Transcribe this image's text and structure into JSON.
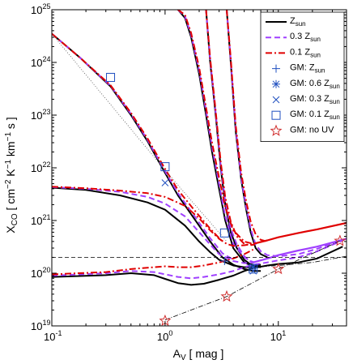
{
  "chart_data": {
    "type": "line",
    "xlabel_main": "A",
    "xlabel_sub": "V",
    "xlabel_unit": " [ mag ]",
    "ylabel_main": "X",
    "ylabel_sub": "CO",
    "ylabel_unit": " [ cm",
    "ylabel_unit_rest": "K",
    "ylabel_unit_rest2": "km",
    "ylabel_unit_rest3": " s ]",
    "xlim": [
      0.1,
      40
    ],
    "ylim": [
      1e+19,
      1e+25
    ],
    "xscale": "log",
    "yscale": "log",
    "grid": false,
    "legend_position": "top-right",
    "x_ticks": [
      {
        "value": 0.1,
        "base": "10",
        "exp": "-1"
      },
      {
        "value": 1,
        "base": "10",
        "exp": "0"
      },
      {
        "value": 10,
        "base": "10",
        "exp": "1"
      }
    ],
    "y_ticks": [
      {
        "value": 1e+19,
        "base": "10",
        "exp": "19"
      },
      {
        "value": 1e+20,
        "base": "10",
        "exp": "20"
      },
      {
        "value": 1e+21,
        "base": "10",
        "exp": "21"
      },
      {
        "value": 1e+22,
        "base": "10",
        "exp": "22"
      },
      {
        "value": 1e+23,
        "base": "10",
        "exp": "23"
      },
      {
        "value": 1e+24,
        "base": "10",
        "exp": "24"
      },
      {
        "value": 1e+25,
        "base": "10",
        "exp": "25"
      }
    ],
    "legend": [
      {
        "label": "Z",
        "sub": "sun",
        "prefix": "",
        "style": "solid-black"
      },
      {
        "label": "0.3 Z",
        "sub": "sun",
        "prefix": "",
        "style": "dashed-purple"
      },
      {
        "label": "0.1 Z",
        "sub": "sun",
        "prefix": "",
        "style": "dashdot-red"
      },
      {
        "label": "GM: Z",
        "sub": "sun",
        "prefix": "",
        "style": "plus-blue"
      },
      {
        "label": "GM: 0.6 Z",
        "sub": "sun",
        "prefix": "",
        "style": "asterisk-blue"
      },
      {
        "label": "GM: 0.3 Z",
        "sub": "sun",
        "prefix": "",
        "style": "cross-blue"
      },
      {
        "label": "GM: 0.1 Z",
        "sub": "sun",
        "prefix": "",
        "style": "square-blue"
      },
      {
        "label": "GM: no UV",
        "sub": "",
        "prefix": "",
        "style": "star-red"
      }
    ],
    "series": [
      {
        "style": "solid-black",
        "x": [
          0.1,
          0.18,
          0.33,
          0.5,
          0.7,
          1.0,
          1.3,
          1.8,
          2.5,
          3.2,
          4.0,
          5.0,
          6.0,
          7.0
        ],
        "y": [
          3.5e+24,
          1.2e+24,
          3.5e+23,
          1e+23,
          3.2e+22,
          8e+21,
          3e+21,
          1.1e+21,
          4e+20,
          2e+20,
          1.45e+20,
          1.2e+20,
          1.1e+20,
          1.1e+20
        ]
      },
      {
        "style": "solid-black",
        "x": [
          0.1,
          0.2,
          0.4,
          0.7,
          1.0,
          1.5,
          2.0,
          2.5,
          3.0,
          4.0,
          5.0,
          6.0,
          7.0
        ],
        "y": [
          4.2e+21,
          3.8e+21,
          3e+21,
          2.2e+21,
          1.6e+21,
          8e+20,
          4e+20,
          2.5e+20,
          1.8e+20,
          1.4e+20,
          1.3e+20,
          1.3e+20,
          1.35e+20
        ]
      },
      {
        "style": "solid-black",
        "x": [
          0.1,
          0.3,
          0.5,
          0.8,
          1.0,
          1.3,
          1.7,
          2.2,
          3.0,
          4.0,
          5.0,
          6.0,
          8.0,
          10.0,
          15.0,
          22.0,
          37.0
        ],
        "y": [
          8.5e+19,
          9.2e+19,
          1e+20,
          9.2e+19,
          7.8e+19,
          6.5e+19,
          6e+19,
          6.3e+19,
          7.5e+19,
          9e+19,
          1.1e+20,
          1.25e+20,
          1.4e+20,
          1.5e+20,
          1.6e+20,
          1.9e+20,
          3.2e+20
        ]
      },
      {
        "style": "solid-black",
        "x": [
          1.3,
          1.5,
          1.7,
          2.0,
          2.3,
          2.6,
          3.0,
          3.4,
          4.0,
          5.0,
          6.0,
          7.0
        ],
        "y": [
          1e+25,
          7e+24,
          3e+24,
          6e+23,
          1e+23,
          2e+22,
          4e+21,
          1e+21,
          3e+20,
          1.6e+20,
          1.35e+20,
          1.3e+20
        ]
      },
      {
        "style": "solid-black",
        "x": [
          2.3,
          2.5,
          2.8,
          3.1,
          3.4,
          3.8,
          4.3,
          5.0,
          5.6,
          6.2,
          7.0
        ],
        "y": [
          1e+25,
          1e+24,
          1e+23,
          1e+22,
          2e+21,
          6e+20,
          3e+20,
          1.8e+20,
          1.5e+20,
          1.4e+20,
          1.45e+20
        ]
      },
      {
        "style": "solid-black",
        "x": [
          3.5,
          3.8,
          4.2,
          4.7,
          5.2,
          5.7,
          6.3,
          7.0,
          8.0
        ],
        "y": [
          1e+25,
          1e+24,
          5e+22,
          6e+21,
          1.6e+21,
          6e+20,
          3e+20,
          2.3e+20,
          2e+20
        ]
      },
      {
        "style": "dashed-purple",
        "x": [
          0.1,
          0.2,
          0.4,
          0.7,
          1.0,
          1.5,
          2.0,
          2.5,
          3.0,
          4.0,
          5.0,
          6.0
        ],
        "y": [
          4.3e+21,
          4e+21,
          3.5e+21,
          2.8e+21,
          2.1e+21,
          1.2e+21,
          6e+20,
          3.5e+20,
          2.3e+20,
          1.7e+20,
          1.55e+20,
          1.6e+20
        ]
      },
      {
        "style": "dashed-purple",
        "x": [
          0.1,
          0.3,
          0.5,
          0.8,
          1.0,
          1.3,
          1.7,
          2.2,
          3.0,
          4.0,
          5.0,
          6.0,
          8.0,
          10.0,
          15.0,
          22.0,
          37.0
        ],
        "y": [
          9e+19,
          1e+20,
          1.1e+20,
          1.05e+20,
          9.5e+19,
          8.5e+19,
          8e+19,
          8.5e+19,
          9.5e+19,
          1.1e+20,
          1.3e+20,
          1.45e+20,
          1.6e+20,
          1.75e+20,
          2e+20,
          2.6e+20,
          4.2e+20
        ]
      },
      {
        "style": "dashed-purple",
        "x": [
          1.3,
          1.5,
          1.7,
          2.0,
          2.3,
          2.6,
          3.0,
          3.4,
          4.0,
          5.0,
          6.0
        ],
        "y": [
          1e+25,
          7.5e+24,
          3.3e+24,
          7e+23,
          1.2e+23,
          2.5e+22,
          5e+21,
          1.2e+21,
          3.6e+20,
          2e+20,
          1.6e+20
        ]
      },
      {
        "style": "dashed-purple",
        "x": [
          2.3,
          2.5,
          2.8,
          3.1,
          3.4,
          3.8,
          4.3,
          5.0,
          5.6,
          6.2
        ],
        "y": [
          1e+25,
          1.1e+24,
          1.1e+23,
          1.1e+22,
          2.3e+21,
          7e+20,
          3.5e+20,
          2.1e+20,
          1.7e+20,
          1.6e+20
        ]
      },
      {
        "style": "dashed-purple",
        "x": [
          3.5,
          3.8,
          4.2,
          4.7,
          5.2,
          5.7,
          6.3,
          7.0,
          8.0,
          10.0,
          15.0,
          22.0,
          37.0
        ],
        "y": [
          1e+25,
          1.1e+24,
          5.5e+22,
          6.5e+21,
          1.8e+21,
          7e+20,
          3.5e+20,
          2.6e+20,
          2.2e+20,
          2.1e+20,
          2.3e+20,
          2.9e+20,
          4.3e+20
        ]
      },
      {
        "style": "dashed-purple",
        "x": [
          0.1,
          0.18,
          0.33,
          0.5,
          0.7,
          1.0,
          1.3,
          1.8,
          2.5,
          3.2,
          4.0
        ],
        "y": [
          3.5e+24,
          1.2e+24,
          3.6e+23,
          1.05e+23,
          3.4e+22,
          8.6e+21,
          3.3e+21,
          1.25e+21,
          4.6e+20,
          2.4e+20,
          1.8e+20
        ]
      },
      {
        "style": "dashdot-red",
        "x": [
          0.1,
          0.2,
          0.4,
          0.7,
          1.0,
          1.5,
          2.0,
          2.5,
          3.0,
          3.5,
          4.0,
          5.0,
          6.0
        ],
        "y": [
          4.4e+21,
          4.1e+21,
          3.7e+21,
          3.3e+21,
          2.8e+21,
          1.9e+21,
          1.1e+21,
          6.5e+20,
          4.5e+20,
          3.6e+20,
          3.3e+20,
          3.4e+20,
          3.6e+20
        ]
      },
      {
        "style": "dashdot-red",
        "x": [
          0.1,
          0.3,
          0.5,
          0.8,
          1.0,
          1.3,
          1.7,
          2.2,
          3.0,
          4.0,
          5.0,
          6.0
        ],
        "y": [
          9.5e+19,
          1.05e+20,
          1.2e+20,
          1.3e+20,
          1.35e+20,
          1.3e+20,
          1.3e+20,
          1.4e+20,
          1.6e+20,
          1.9e+20,
          2.3e+20,
          2.8e+20
        ]
      },
      {
        "style": "dashdot-red",
        "x": [
          1.3,
          1.5,
          1.7,
          2.0,
          2.3,
          2.6,
          3.0,
          3.4,
          4.0,
          5.0,
          6.0
        ],
        "y": [
          1e+25,
          8e+24,
          3.6e+24,
          8e+23,
          1.4e+23,
          3e+22,
          6.5e+21,
          1.8e+21,
          6.5e+20,
          4e+20,
          3.6e+20
        ]
      },
      {
        "style": "dashdot-red",
        "x": [
          2.3,
          2.5,
          2.8,
          3.1,
          3.4,
          3.8,
          4.3,
          5.0,
          5.6,
          6.2
        ],
        "y": [
          1e+25,
          1.2e+24,
          1.2e+23,
          1.3e+22,
          2.8e+21,
          9.5e+20,
          5e+20,
          3.6e+20,
          3.4e+20,
          3.5e+20
        ]
      },
      {
        "style": "dashdot-red",
        "x": [
          3.5,
          3.8,
          4.2,
          4.7,
          5.2,
          5.7,
          6.3,
          7.0,
          8.0
        ],
        "y": [
          1e+25,
          1.2e+24,
          6.5e+22,
          8e+21,
          2.3e+21,
          9.5e+20,
          5.5e+20,
          4.3e+20,
          4e+20
        ]
      },
      {
        "style": "dashdot-red",
        "x": [
          0.1,
          0.18,
          0.33,
          0.5,
          0.7,
          1.0,
          1.3,
          1.8,
          2.5,
          3.2
        ],
        "y": [
          3.5e+24,
          1.2e+24,
          3.7e+23,
          1.1e+23,
          3.6e+22,
          9.5e+21,
          3.8e+21,
          1.6e+21,
          7e+20,
          4e+20
        ]
      },
      {
        "style": "solid-red-thick",
        "x": [
          6.0,
          8.0,
          10.0,
          15.0,
          22.0,
          40.0
        ],
        "y": [
          3.6e+20,
          4.2e+20,
          4.8e+20,
          5.8e+20,
          6.8e+20,
          9e+20
        ]
      },
      {
        "style": "solid-purple-thick",
        "x": [
          6.0,
          8.0,
          10.0,
          15.0,
          22.0,
          40.0
        ],
        "y": [
          1.6e+20,
          1.9e+20,
          2.2e+20,
          2.7e+20,
          3.2e+20,
          4.5e+20
        ]
      },
      {
        "style": "dotted-black",
        "x": [
          0.1,
          1.0,
          3.5
        ],
        "y": [
          3.5e+24,
          9e+21,
          4e+20
        ]
      },
      {
        "style": "dashed-black-thin",
        "x": [
          0.1,
          40.0
        ],
        "y": [
          2e+20,
          2e+20
        ]
      },
      {
        "style": "dashdot-black-thin",
        "x": [
          1.0,
          3.5,
          10.0,
          35.0
        ],
        "y": [
          1.3e+19,
          3.6e+19,
          1.2e+20,
          4.1e+20
        ]
      },
      {
        "style": "dashdot-black-thin",
        "x": [
          6.0,
          10.0,
          20.0,
          40.0
        ],
        "y": [
          1.3e+20,
          1.4e+20,
          1.6e+20,
          2.1e+20
        ]
      }
    ],
    "markers": [
      {
        "style": "square-blue",
        "x": 0.33,
        "y": 5.2e+23
      },
      {
        "style": "square-blue",
        "x": 1.0,
        "y": 1.05e+22
      },
      {
        "style": "cross-blue",
        "x": 1.0,
        "y": 5.2e+21
      },
      {
        "style": "square-blue",
        "x": 3.35,
        "y": 5.8e+20
      },
      {
        "style": "plus-blue",
        "x": 3.35,
        "y": 1.7e+20
      },
      {
        "style": "square-blue",
        "x": 6.0,
        "y": 1.2e+20
      },
      {
        "style": "asterisk-blue",
        "x": 6.0,
        "y": 1.3e+20
      },
      {
        "style": "cross-blue",
        "x": 6.0,
        "y": 1.1e+20
      },
      {
        "style": "star-red",
        "x": 1.0,
        "y": 1.25e+19
      },
      {
        "style": "star-red",
        "x": 3.5,
        "y": 3.6e+19
      },
      {
        "style": "star-red",
        "x": 10.0,
        "y": 1.2e+20
      },
      {
        "style": "star-red",
        "x": 35.0,
        "y": 4.1e+20
      }
    ],
    "colors": {
      "black": "#000000",
      "purple": "#a040ff",
      "red": "#e00000",
      "blue": "#2050c0",
      "star": "#d03030",
      "grey": "#555555"
    }
  }
}
